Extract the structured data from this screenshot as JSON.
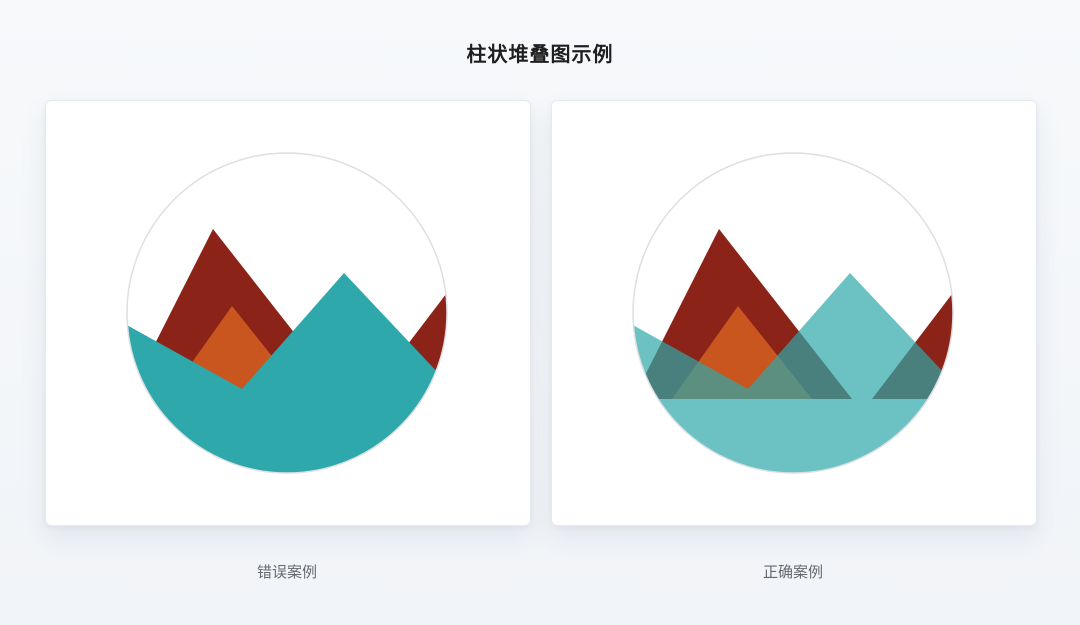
{
  "title": "柱状堆叠图示例",
  "examples": [
    {
      "caption": "错误案例",
      "layers": [
        {
          "name": "dark-red-mountains",
          "color": "#8b2318",
          "opacity": 1
        },
        {
          "name": "orange-peak",
          "color": "#c8561e",
          "opacity": 1
        },
        {
          "name": "teal-mountain",
          "color": "#2ea8aa",
          "opacity": 1
        }
      ]
    },
    {
      "caption": "正确案例",
      "layers": [
        {
          "name": "dark-red-mountains",
          "color": "#8b2318",
          "opacity": 1
        },
        {
          "name": "orange-peak",
          "color": "#c8561e",
          "opacity": 1
        },
        {
          "name": "teal-mountain",
          "color": "#2ea8aa",
          "opacity": 0.7
        }
      ]
    }
  ]
}
